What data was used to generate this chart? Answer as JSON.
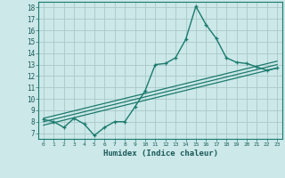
{
  "xlabel": "Humidex (Indice chaleur)",
  "bg_color": "#cce8e8",
  "line_color": "#1a7a6e",
  "grid_color": "#aac8c8",
  "xlim": [
    -0.5,
    23.5
  ],
  "ylim": [
    6.5,
    18.5
  ],
  "xticks": [
    0,
    1,
    2,
    3,
    4,
    5,
    6,
    7,
    8,
    9,
    10,
    11,
    12,
    13,
    14,
    15,
    16,
    17,
    18,
    19,
    20,
    21,
    22,
    23
  ],
  "yticks": [
    7,
    8,
    9,
    10,
    11,
    12,
    13,
    14,
    15,
    16,
    17,
    18
  ],
  "main_x": [
    0,
    1,
    2,
    3,
    4,
    5,
    6,
    7,
    8,
    9,
    10,
    11,
    12,
    13,
    14,
    15,
    16,
    17,
    18,
    19,
    20,
    21,
    22,
    23
  ],
  "main_y": [
    8.2,
    8.0,
    7.5,
    8.3,
    7.8,
    6.8,
    7.5,
    8.0,
    8.0,
    9.3,
    10.7,
    13.0,
    13.1,
    13.6,
    15.2,
    18.1,
    16.5,
    15.3,
    13.6,
    13.2,
    13.1,
    12.8,
    12.5,
    12.7
  ],
  "line1_x": [
    0,
    23
  ],
  "line1_y": [
    8.0,
    13.0
  ],
  "line2_x": [
    0,
    23
  ],
  "line2_y": [
    8.3,
    13.3
  ],
  "line3_x": [
    0,
    23
  ],
  "line3_y": [
    7.7,
    12.7
  ]
}
